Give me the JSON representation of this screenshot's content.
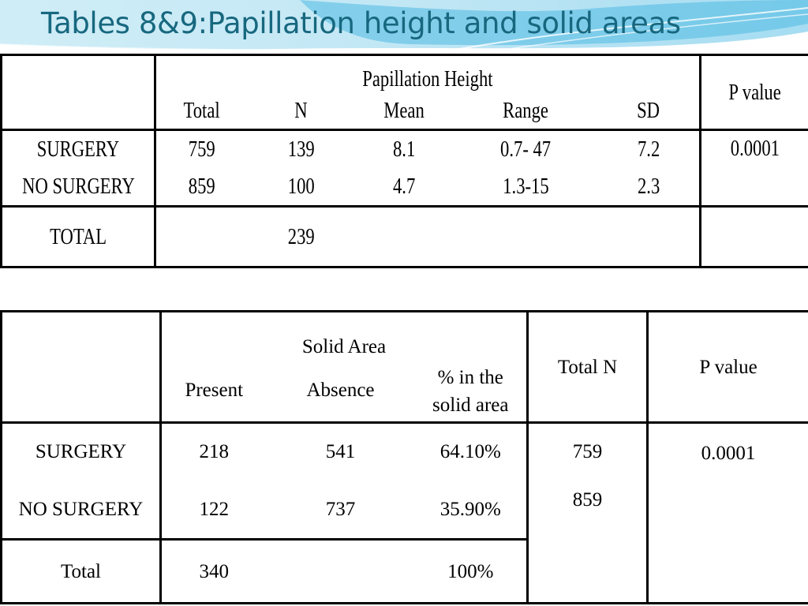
{
  "slide": {
    "title": "Tables 8&9:Papillation height and solid areas"
  },
  "table1": {
    "group_header": "Papillation Height",
    "p_header": "P value",
    "columns": [
      "Total",
      "N",
      "Mean",
      "Range",
      "SD"
    ],
    "rows": [
      {
        "label": "SURGERY",
        "total": "759",
        "n": "139",
        "mean": "8.1",
        "range": "0.7- 47",
        "sd": "7.2"
      },
      {
        "label": "NO SURGERY",
        "total": "859",
        "n": "100",
        "mean": "4.7",
        "range": "1.3-15",
        "sd": "2.3"
      }
    ],
    "p_value": "0.0001",
    "total_row": {
      "label": "TOTAL",
      "n": "239"
    }
  },
  "table2": {
    "group_header": "Solid Area",
    "columns": [
      "Present",
      "Absence",
      "% in the solid area"
    ],
    "total_n_header": "Total N",
    "p_header": "P  value",
    "rows": [
      {
        "label": "SURGERY",
        "present": "218",
        "absence": "541",
        "pct": "64.10%",
        "total_n": "759"
      },
      {
        "label": "NO SURGERY",
        "present": "122",
        "absence": "737",
        "pct": "35.90%",
        "total_n": "859"
      }
    ],
    "p_value": "0.0001",
    "total_row": {
      "label": "Total",
      "present": "340",
      "pct": "100%"
    }
  }
}
